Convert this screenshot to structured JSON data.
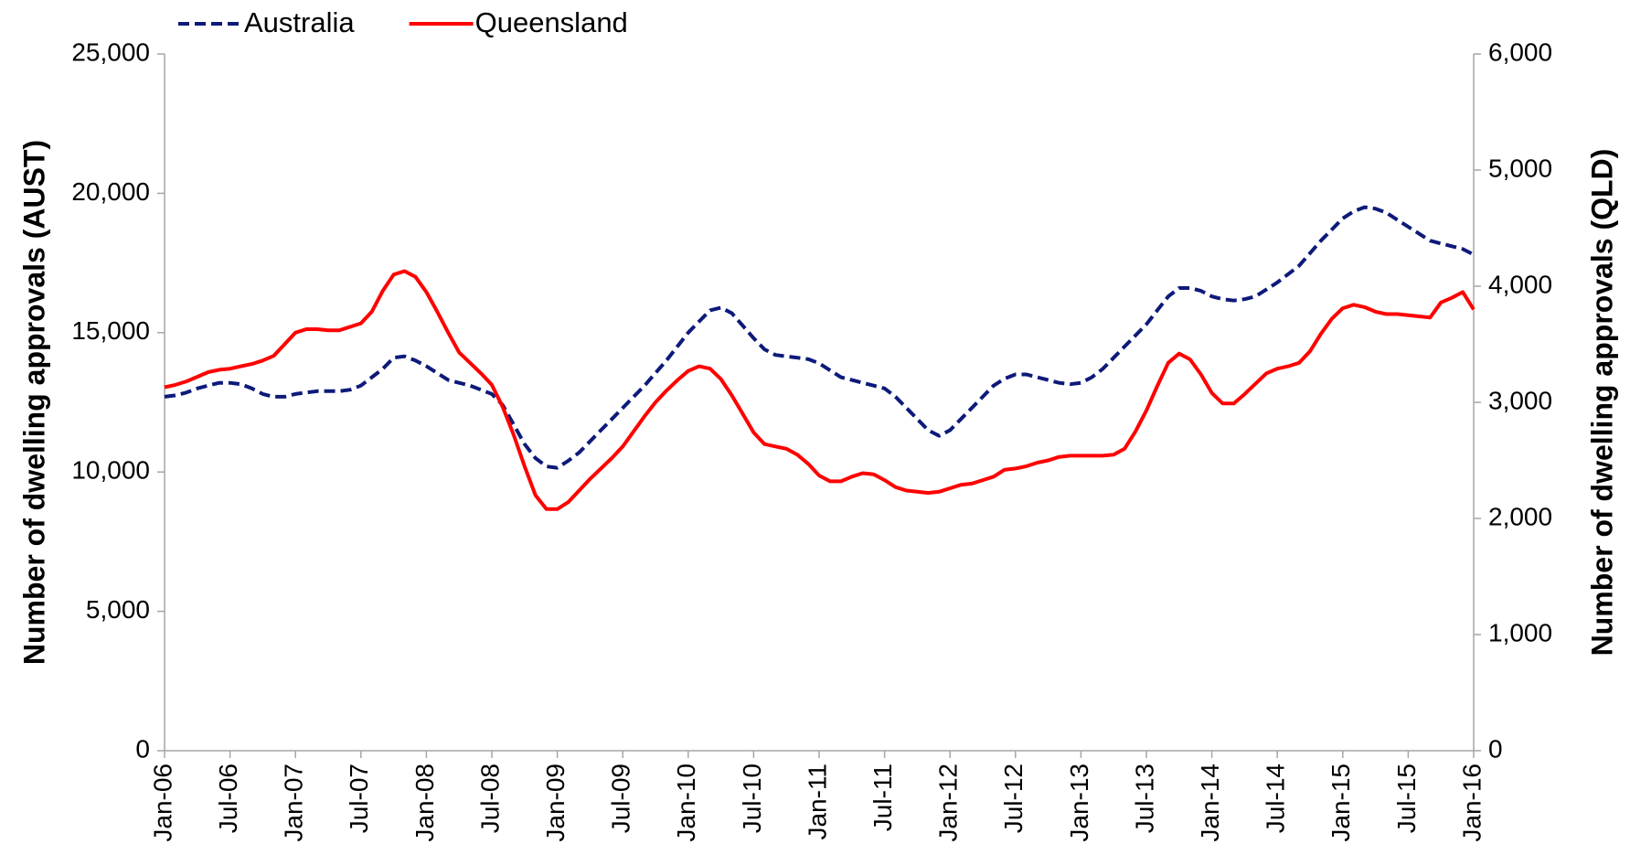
{
  "chart_data": {
    "type": "line",
    "y_label": "Number of dwelling approvals (AUST)",
    "y2_label": "Number of dwelling approvals (QLD)",
    "legend": "top",
    "categories": [
      "Jan-06",
      null,
      null,
      null,
      null,
      null,
      "Jul-06",
      null,
      null,
      null,
      null,
      null,
      "Jan-07",
      null,
      null,
      null,
      null,
      null,
      "Jul-07",
      null,
      null,
      null,
      null,
      null,
      "Jan-08",
      null,
      null,
      null,
      null,
      null,
      "Jul-08",
      null,
      null,
      null,
      null,
      null,
      "Jan-09",
      null,
      null,
      null,
      null,
      null,
      "Jul-09",
      null,
      null,
      null,
      null,
      null,
      "Jan-10",
      null,
      null,
      null,
      null,
      null,
      "Jul-10",
      null,
      null,
      null,
      null,
      null,
      "Jan-11",
      null,
      null,
      null,
      null,
      null,
      "Jul-11",
      null,
      null,
      null,
      null,
      null,
      "Jan-12",
      null,
      null,
      null,
      null,
      null,
      "Jul-12",
      null,
      null,
      null,
      null,
      null,
      "Jan-13",
      null,
      null,
      null,
      null,
      null,
      "Jul-13",
      null,
      null,
      null,
      null,
      null,
      "Jan-14",
      null,
      null,
      null,
      null,
      null,
      "Jul-14",
      null,
      null,
      null,
      null,
      null,
      "Jan-15",
      null,
      null,
      null,
      null,
      null,
      "Jul-15",
      null,
      null,
      null,
      null,
      null,
      "Jan-16"
    ],
    "series": [
      {
        "name": "Australia",
        "color": "#0d1a7a",
        "dash": "dashed",
        "axis": "y",
        "values": [
          12700,
          12750,
          12850,
          13000,
          13100,
          13200,
          13200,
          13150,
          13000,
          12800,
          12700,
          12700,
          12800,
          12850,
          12900,
          12900,
          12900,
          12950,
          13100,
          13400,
          13700,
          14100,
          14150,
          14000,
          13800,
          13550,
          13300,
          13200,
          13100,
          12950,
          12800,
          12400,
          11700,
          11000,
          10500,
          10200,
          10150,
          10400,
          10700,
          11100,
          11500,
          11900,
          12300,
          12700,
          13100,
          13550,
          14000,
          14500,
          15000,
          15400,
          15800,
          15900,
          15700,
          15250,
          14800,
          14400,
          14200,
          14150,
          14100,
          14050,
          13900,
          13650,
          13400,
          13300,
          13200,
          13100,
          13000,
          12700,
          12300,
          11900,
          11500,
          11300,
          11500,
          11900,
          12300,
          12700,
          13100,
          13350,
          13500,
          13500,
          13400,
          13300,
          13200,
          13150,
          13200,
          13400,
          13700,
          14100,
          14500,
          14900,
          15300,
          15800,
          16300,
          16600,
          16600,
          16500,
          16300,
          16200,
          16150,
          16200,
          16300,
          16550,
          16800,
          17100,
          17400,
          17850,
          18300,
          18700,
          19100,
          19350,
          19500,
          19450,
          19300,
          19050,
          18800,
          18550,
          18300,
          18200,
          18100,
          18000,
          17800
        ]
      },
      {
        "name": "Queensland",
        "color": "#ff0000",
        "dash": "solid",
        "axis": "y2",
        "values": [
          3130,
          3150,
          3180,
          3220,
          3260,
          3280,
          3290,
          3310,
          3330,
          3360,
          3400,
          3500,
          3600,
          3630,
          3630,
          3620,
          3620,
          3650,
          3680,
          3780,
          3960,
          4100,
          4130,
          4080,
          3950,
          3780,
          3600,
          3430,
          3340,
          3250,
          3150,
          2960,
          2720,
          2450,
          2200,
          2080,
          2080,
          2140,
          2240,
          2340,
          2430,
          2520,
          2620,
          2750,
          2880,
          3000,
          3100,
          3190,
          3270,
          3310,
          3290,
          3200,
          3060,
          2900,
          2740,
          2640,
          2620,
          2600,
          2550,
          2470,
          2370,
          2320,
          2320,
          2360,
          2390,
          2380,
          2330,
          2270,
          2240,
          2230,
          2220,
          2230,
          2260,
          2290,
          2300,
          2330,
          2360,
          2420,
          2430,
          2450,
          2480,
          2500,
          2530,
          2540,
          2540,
          2540,
          2540,
          2550,
          2600,
          2750,
          2930,
          3140,
          3340,
          3420,
          3370,
          3240,
          3080,
          2990,
          2990,
          3070,
          3160,
          3250,
          3290,
          3310,
          3340,
          3440,
          3590,
          3720,
          3810,
          3840,
          3820,
          3780,
          3760,
          3760,
          3750,
          3740,
          3730,
          3860,
          3900,
          3950,
          3800
        ]
      }
    ],
    "ylim": [
      0,
      25000
    ],
    "yticks": [
      0,
      {
        "value": 5000,
        "label": "5,000"
      },
      {
        "value": 10000,
        "label": "10,000"
      },
      {
        "value": 15000,
        "label": "15,000"
      },
      {
        "value": 20000,
        "label": "20,000"
      },
      {
        "value": 25000,
        "label": "25,000"
      }
    ],
    "y2lim": [
      0,
      6000
    ],
    "y2ticks": [
      0,
      {
        "value": 1000,
        "label": "1,000"
      },
      {
        "value": 2000,
        "label": "2,000"
      },
      {
        "value": 3000,
        "label": "3,000"
      },
      {
        "value": 4000,
        "label": "4,000"
      },
      {
        "value": 5000,
        "label": "5,000"
      },
      {
        "value": 6000,
        "label": "6,000"
      }
    ],
    "grid": false
  }
}
